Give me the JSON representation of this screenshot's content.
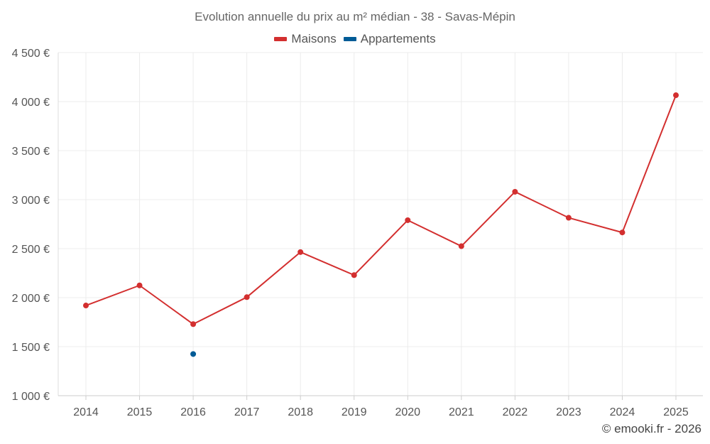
{
  "chart_data": {
    "type": "line",
    "title": "Evolution annuelle du prix au m² médian - 38 - Savas-Mépin",
    "x": [
      "2014",
      "2015",
      "2016",
      "2017",
      "2018",
      "2019",
      "2020",
      "2021",
      "2022",
      "2023",
      "2024",
      "2025"
    ],
    "series": [
      {
        "name": "Maisons",
        "color": "#d32f2f",
        "values": [
          1920,
          2125,
          1730,
          2005,
          2465,
          2230,
          2790,
          2525,
          3080,
          2815,
          2665,
          4065
        ]
      },
      {
        "name": "Appartements",
        "color": "#005b96",
        "values": [
          null,
          null,
          1425,
          null,
          null,
          null,
          null,
          null,
          null,
          null,
          null,
          null
        ]
      }
    ],
    "ylim": [
      1000,
      4500
    ],
    "yticks": [
      1000,
      1500,
      2000,
      2500,
      3000,
      3500,
      4000,
      4500
    ],
    "ytick_labels": [
      "1 000 €",
      "1 500 €",
      "2 000 €",
      "2 500 €",
      "3 000 €",
      "3 500 €",
      "4 000 €",
      "4 500 €"
    ],
    "grid": true,
    "legend_position": "top-center"
  },
  "credit": "© emooki.fr - 2026"
}
